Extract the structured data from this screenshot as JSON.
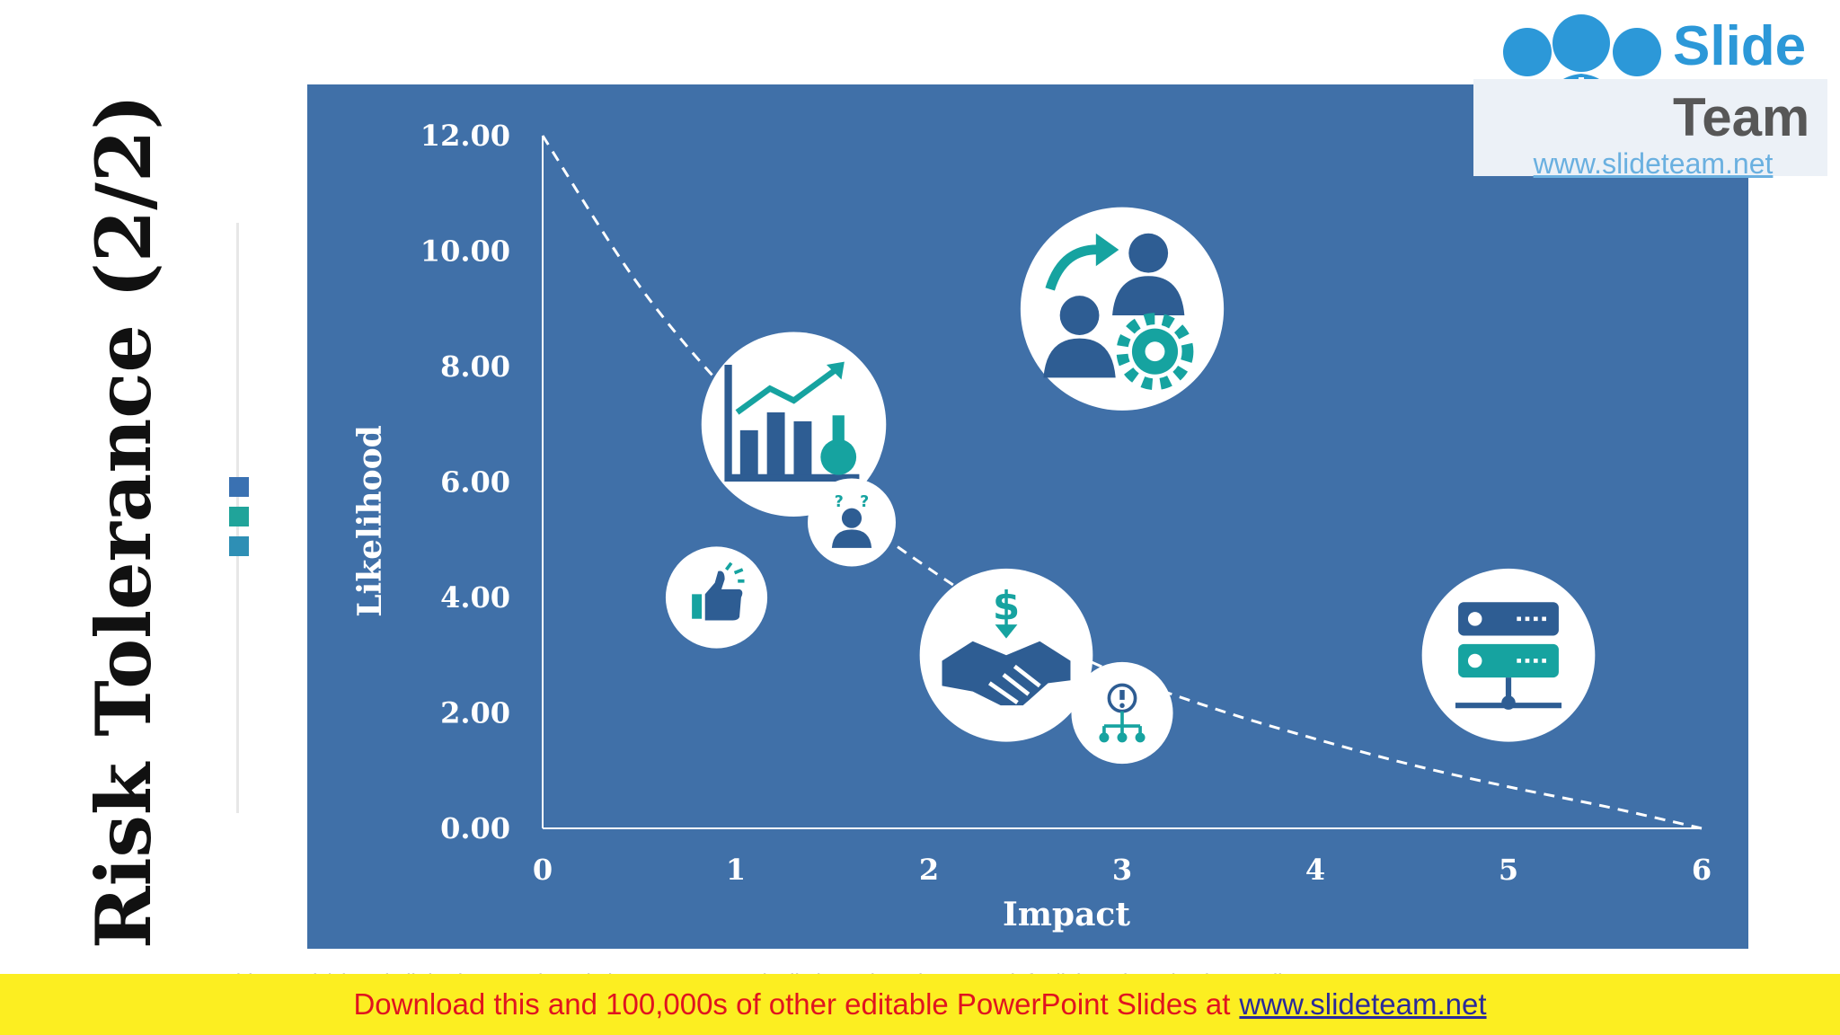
{
  "slide": {
    "title": "Risk Tolerance (2/2)",
    "caption": "This graph/chart is linked to excel, and changes automatically based on data. Just left click on it and select “Edit Data”."
  },
  "logo": {
    "word1": "Slide",
    "word2": "Team",
    "url": "www.slideteam.net"
  },
  "banner": {
    "text": "Download this and 100,000s of other editable PowerPoint Slides at",
    "link": "www.slideteam.net"
  },
  "colors": {
    "panel": "#4070a8",
    "teal": "#16a3a0",
    "navy": "#2e5d93",
    "accent_squares": [
      "#3a71b2",
      "#20a49a",
      "#2e8fb5"
    ]
  },
  "chart_data": {
    "type": "scatter",
    "xlabel": "Impact",
    "ylabel": "Likelihood",
    "xlim": [
      0,
      6
    ],
    "ylim": [
      0,
      12
    ],
    "x_ticks": [
      "0",
      "1",
      "2",
      "3",
      "4",
      "5",
      "6"
    ],
    "y_ticks": [
      "0.00",
      "2.00",
      "4.00",
      "6.00",
      "8.00",
      "10.00",
      "12.00"
    ],
    "curve": {
      "style": "dashed",
      "x": [
        0,
        0.5,
        1,
        1.5,
        2,
        2.5,
        3,
        3.5,
        4,
        4.5,
        5,
        5.5,
        6
      ],
      "y": [
        12.0,
        9.4,
        7.4,
        5.75,
        4.5,
        3.45,
        2.65,
        2.05,
        1.55,
        1.1,
        0.72,
        0.38,
        0.0
      ]
    },
    "points": [
      {
        "x": 0.9,
        "y": 4.0,
        "size": 2.0,
        "icon": "thumbs-up-icon"
      },
      {
        "x": 1.3,
        "y": 7.0,
        "size": 6.6,
        "icon": "growth-chart-icon"
      },
      {
        "x": 1.6,
        "y": 5.3,
        "size": 1.5,
        "icon": "confused-person-icon"
      },
      {
        "x": 2.4,
        "y": 3.0,
        "size": 5.8,
        "icon": "handshake-money-icon"
      },
      {
        "x": 3.0,
        "y": 9.0,
        "size": 8.0,
        "icon": "team-management-icon"
      },
      {
        "x": 3.0,
        "y": 2.0,
        "size": 2.0,
        "icon": "risk-hierarchy-icon"
      },
      {
        "x": 5.0,
        "y": 3.0,
        "size": 5.8,
        "icon": "server-network-icon"
      }
    ]
  }
}
